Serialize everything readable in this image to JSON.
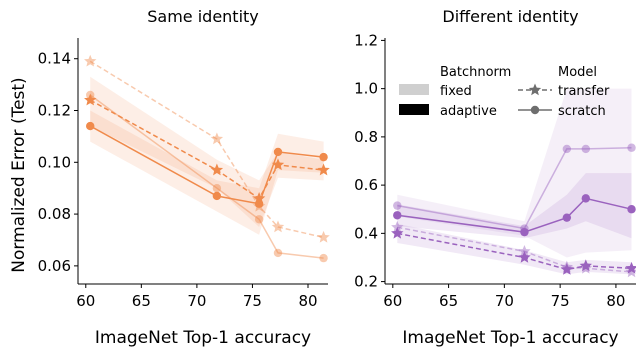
{
  "figure": {
    "ylabel": "Normalized Error (Test)",
    "legend": {
      "batchnorm_title": "Batchnorm",
      "batchnorm_entries": [
        "fixed",
        "adaptive"
      ],
      "model_title": "Model",
      "model_entries": [
        "transfer",
        "scratch"
      ],
      "placement": "upper-right of right panel"
    }
  },
  "chart_data": [
    {
      "type": "line",
      "title": "Same identity",
      "xlabel": "ImageNet Top-1 accuracy",
      "ylabel": "Normalized Error (Test)",
      "xlim": [
        59.3,
        81.8
      ],
      "ylim": [
        0.053,
        0.148
      ],
      "xticks": [
        60,
        65,
        70,
        75,
        80
      ],
      "yticks": [
        0.06,
        0.08,
        0.1,
        0.12,
        0.14
      ],
      "ytick_labels": [
        "0.06",
        "0.08",
        "0.10",
        "0.12",
        "0.14"
      ],
      "color": "#f08a4b",
      "grid": false,
      "x": [
        60.4,
        71.8,
        75.6,
        77.3,
        81.4
      ],
      "series": [
        {
          "batchnorm": "fixed",
          "model": "transfer",
          "values": [
            0.139,
            0.109,
            0.083,
            0.075,
            0.071
          ],
          "band": null
        },
        {
          "batchnorm": "fixed",
          "model": "scratch",
          "values": [
            0.126,
            0.09,
            0.078,
            0.065,
            0.063
          ],
          "band": null
        },
        {
          "batchnorm": "adaptive",
          "model": "transfer",
          "values": [
            0.124,
            0.097,
            0.086,
            0.099,
            0.097
          ],
          "band": [
            [
              0.114,
              0.133
            ],
            [
              0.09,
              0.101
            ],
            [
              0.075,
              0.093
            ],
            [
              0.094,
              0.104
            ],
            [
              0.093,
              0.101
            ]
          ]
        },
        {
          "batchnorm": "adaptive",
          "model": "scratch",
          "values": [
            0.114,
            0.087,
            0.084,
            0.104,
            0.102
          ],
          "band": [
            [
              0.108,
              0.12
            ],
            [
              0.081,
              0.093
            ],
            [
              0.072,
              0.09
            ],
            [
              0.097,
              0.111
            ],
            [
              0.096,
              0.108
            ]
          ]
        }
      ]
    },
    {
      "type": "line",
      "title": "Different identity",
      "xlabel": "ImageNet Top-1 accuracy",
      "ylabel": "",
      "xlim": [
        59.3,
        81.8
      ],
      "ylim": [
        0.19,
        1.21
      ],
      "xticks": [
        60,
        65,
        70,
        75,
        80
      ],
      "yticks": [
        0.2,
        0.4,
        0.6,
        0.8,
        1.0,
        1.2
      ],
      "ytick_labels": [
        "0.2",
        "0.4",
        "0.6",
        "0.8",
        "1.0",
        "1.2"
      ],
      "color": "#9a62be",
      "grid": false,
      "x": [
        60.4,
        71.8,
        75.6,
        77.3,
        81.4
      ],
      "series": [
        {
          "batchnorm": "fixed",
          "model": "transfer",
          "values": [
            0.425,
            0.325,
            0.26,
            0.255,
            0.24
          ],
          "band": null
        },
        {
          "batchnorm": "fixed",
          "model": "scratch",
          "values": [
            0.515,
            0.42,
            0.75,
            0.75,
            0.755
          ],
          "band": [
            [
              0.47,
              0.56
            ],
            [
              0.39,
              0.45
            ],
            [
              0.3,
              1.0
            ],
            [
              0.32,
              1.0
            ],
            [
              0.33,
              1.0
            ]
          ]
        },
        {
          "batchnorm": "adaptive",
          "model": "transfer",
          "values": [
            0.4,
            0.3,
            0.25,
            0.265,
            0.255
          ],
          "band": [
            [
              0.36,
              0.44
            ],
            [
              0.27,
              0.33
            ],
            [
              0.23,
              0.28
            ],
            [
              0.24,
              0.29
            ],
            [
              0.23,
              0.28
            ]
          ]
        },
        {
          "batchnorm": "adaptive",
          "model": "scratch",
          "values": [
            0.475,
            0.405,
            0.465,
            0.545,
            0.5
          ],
          "band": [
            [
              0.43,
              0.52
            ],
            [
              0.38,
              0.43
            ],
            [
              0.42,
              0.56
            ],
            [
              0.45,
              0.65
            ],
            [
              0.38,
              0.65
            ]
          ]
        }
      ]
    }
  ]
}
